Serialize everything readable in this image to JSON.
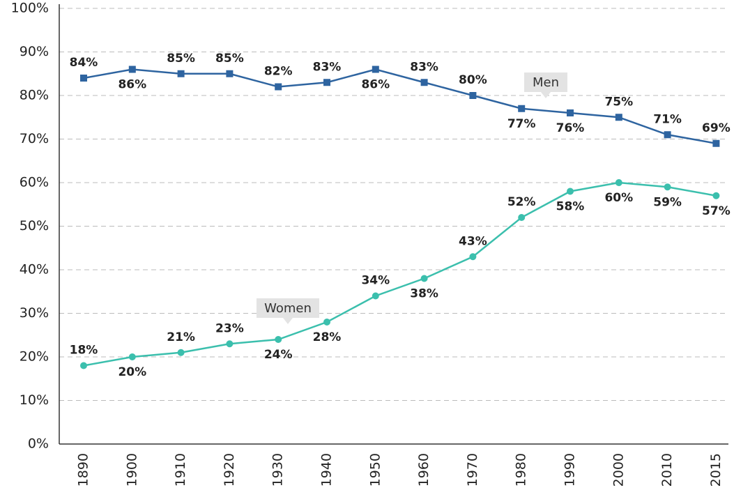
{
  "chart_data": {
    "type": "line",
    "categories": [
      "1890",
      "1900",
      "1910",
      "1920",
      "1930",
      "1940",
      "1950",
      "1960",
      "1970",
      "1980",
      "1990",
      "2000",
      "2010",
      "2015"
    ],
    "series": [
      {
        "name": "Men",
        "color": "#2e64a0",
        "marker": "square",
        "values": [
          84,
          86,
          85,
          85,
          82,
          83,
          86,
          83,
          80,
          77,
          76,
          75,
          71,
          69
        ],
        "value_labels": [
          "84%",
          "86%",
          "85%",
          "85%",
          "82%",
          "83%",
          "86%",
          "83%",
          "80%",
          "77%",
          "76%",
          "75%",
          "71%",
          "69%"
        ]
      },
      {
        "name": "Women",
        "color": "#3bbfad",
        "marker": "circle",
        "values": [
          18,
          20,
          21,
          23,
          24,
          28,
          34,
          38,
          43,
          52,
          58,
          60,
          59,
          57
        ],
        "value_labels": [
          "18%",
          "20%",
          "21%",
          "23%",
          "24%",
          "28%",
          "34%",
          "38%",
          "43%",
          "52%",
          "58%",
          "60%",
          "59%",
          "57%"
        ]
      }
    ],
    "ylim": [
      0,
      100
    ],
    "yticks": [
      {
        "value": 0,
        "label": "0%"
      },
      {
        "value": 10,
        "label": "10%"
      },
      {
        "value": 20,
        "label": "20%"
      },
      {
        "value": 30,
        "label": "30%"
      },
      {
        "value": 40,
        "label": "40%"
      },
      {
        "value": 50,
        "label": "50%"
      },
      {
        "value": 60,
        "label": "60%"
      },
      {
        "value": 70,
        "label": "70%"
      },
      {
        "value": 80,
        "label": "80%"
      },
      {
        "value": 90,
        "label": "90%"
      },
      {
        "value": 100,
        "label": "100%"
      }
    ],
    "grid": true
  }
}
